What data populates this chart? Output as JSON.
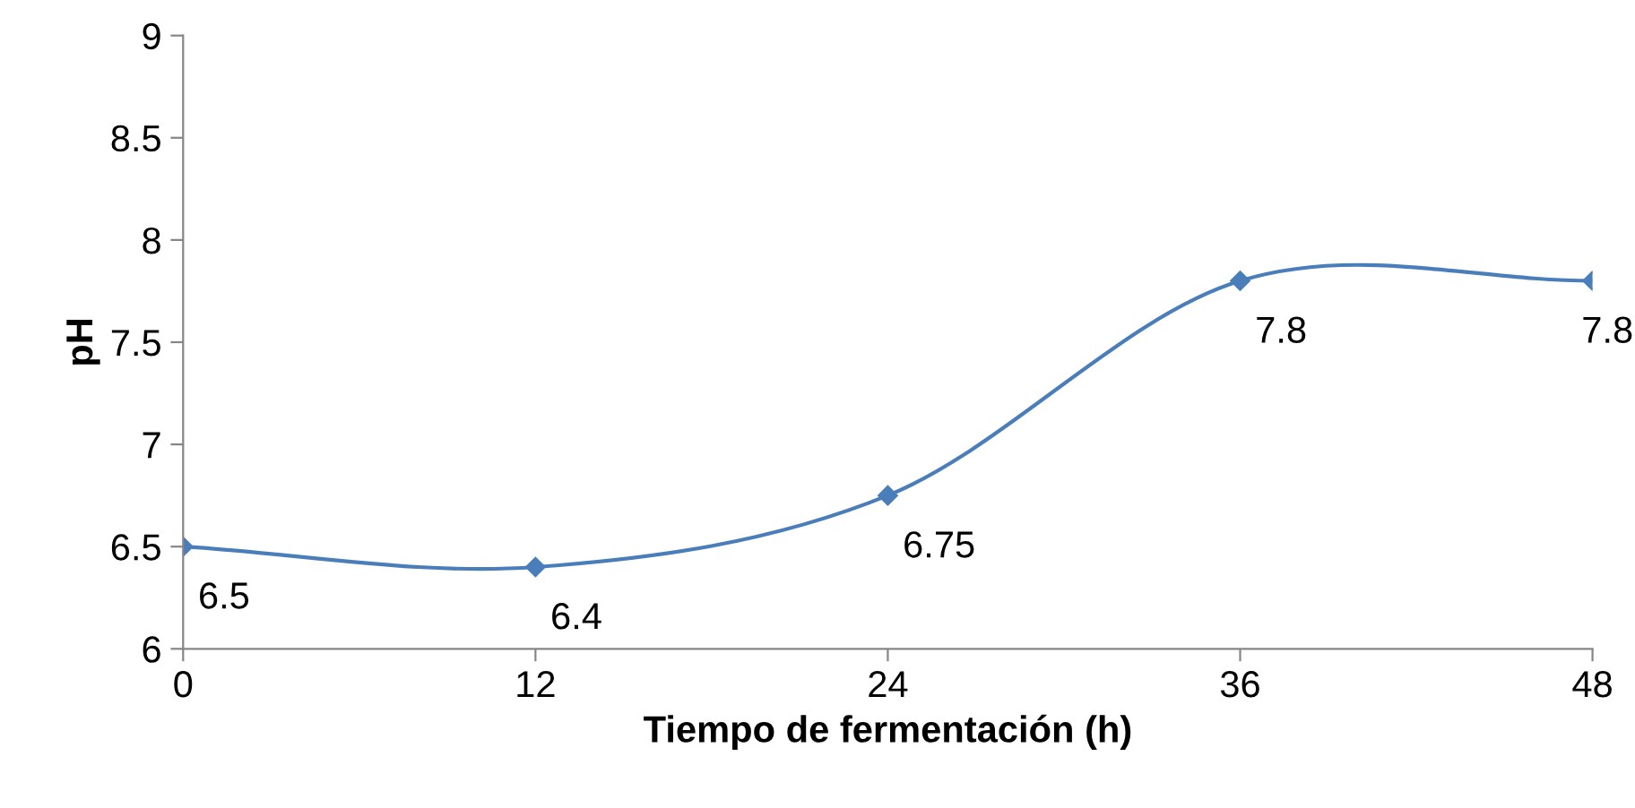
{
  "chart_data": {
    "type": "line",
    "xlabel": "Tiempo de fermentación (h)",
    "ylabel": "pH",
    "x": [
      0,
      12,
      24,
      36,
      48
    ],
    "series": [
      {
        "color": "#4a7ebb",
        "values": [
          6.5,
          6.4,
          6.75,
          7.8,
          7.8
        ]
      }
    ],
    "xlim": [
      0,
      48
    ],
    "xticks": [
      0,
      12,
      24,
      36,
      48
    ],
    "ylim": [
      6,
      9
    ],
    "yticks": [
      6,
      6.5,
      7,
      7.5,
      8,
      8.5,
      9
    ],
    "grid": false,
    "legend": false,
    "marker": "diamond",
    "line_style": "solid",
    "data_labels": true
  }
}
